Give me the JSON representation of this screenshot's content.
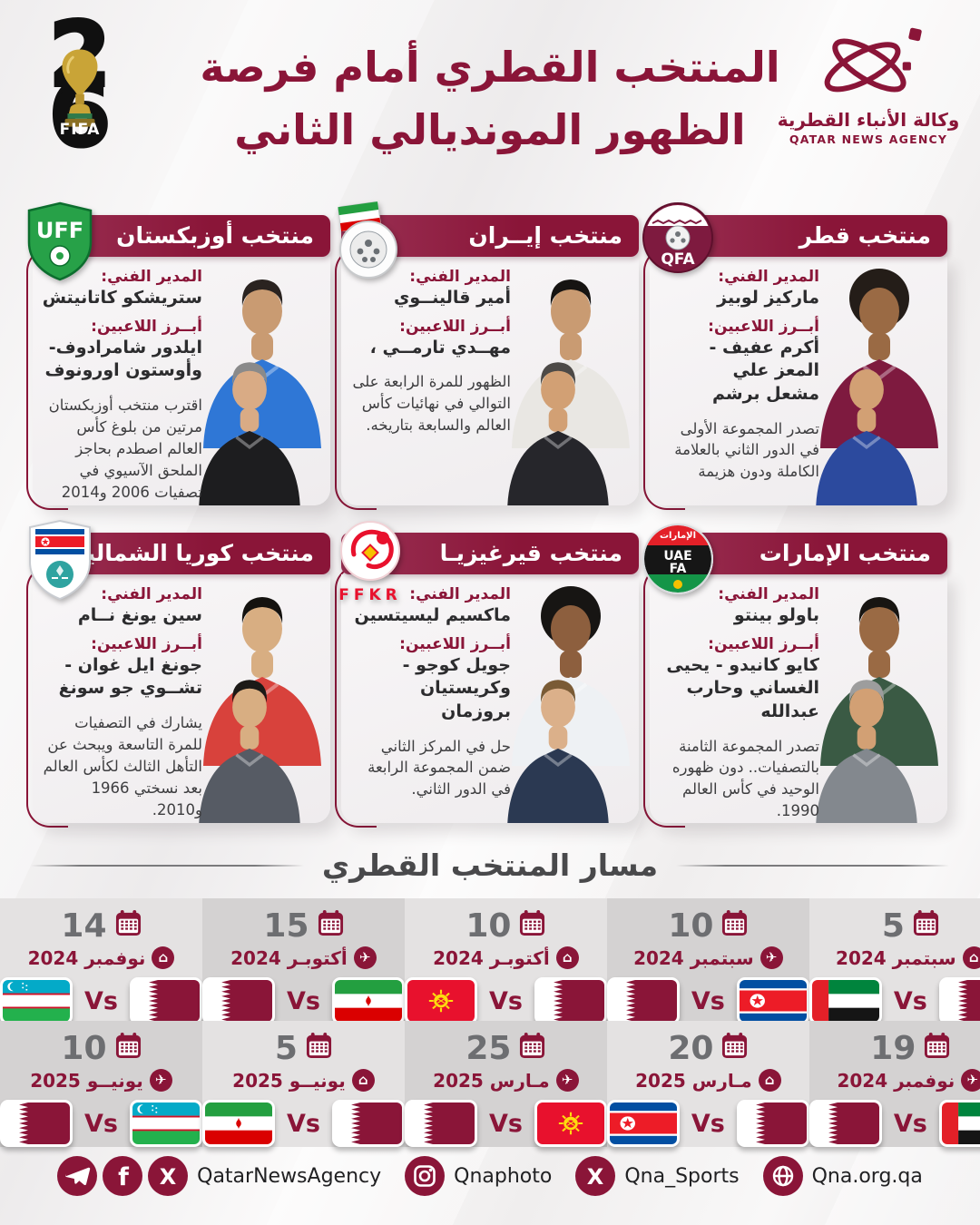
{
  "colors": {
    "accent_maroon": "#8a1538",
    "qfa_maroon": "#7e1a3f",
    "cell_light": "#e4e2e2",
    "cell_dark": "#d4d2d2",
    "day_gray": "#6d6e71",
    "section_gray": "#49494b"
  },
  "header": {
    "fifa_badge": {
      "digit_top": "2",
      "digit_bottom": "6",
      "label": "FIFA",
      "trophy_icon": "world-cup-trophy-icon"
    },
    "title_line1": "المنتخب القطري أمام فرصة",
    "title_line2": "الظهور المونديالي الثاني",
    "qna": {
      "logo_icon": "qna-swirl-icon",
      "name_ar": "وكالة الأنباء القطرية",
      "name_en": "QATAR NEWS AGENCY"
    }
  },
  "labels": {
    "coach": "المدير الفني:",
    "players": "أبــرز اللاعبين:",
    "vs": "Vs"
  },
  "icons": {
    "home_glyph": "⌂",
    "away_glyph": "✈"
  },
  "teams": [
    {
      "id": "uzbekistan",
      "title": "منتخب أوزبكستان",
      "badge": "uff",
      "badge_letters": "UFF",
      "coach": "ستريشكو كاتانيتش",
      "players": "ايلدور شامرادوف-\nوأوستون اورونوف",
      "desc": "اقترب منتخب أوزبكستان مرتين من بلوغ كأس العالم اصطدم بحاجز الملحق الآسيوي في تصفيات 2006 و2014",
      "photo": {
        "player": {
          "skin": "#c99b72",
          "hair": "#2a2320",
          "top": "#2f77d6",
          "style": "cap"
        },
        "coach": {
          "skin": "#d9ab85",
          "hair": "#8a8a8a",
          "top": "#1d1d1f",
          "style": "cap"
        }
      }
    },
    {
      "id": "iran",
      "title": "منتخب إيــران",
      "badge": "irnfed",
      "badge_letters": "",
      "coach": "أمير قالينــوي",
      "players": "مهــدي تارمــي ،",
      "desc": "الظهور للمرة الرابعة على التوالي في نهائيات كأس العالم والسابعة بتاريخه.",
      "photo": {
        "player": {
          "skin": "#c99b72",
          "hair": "#161412",
          "top": "#e9e7e3",
          "style": "cap"
        },
        "coach": {
          "skin": "#d2a074",
          "hair": "#4d4a47",
          "top": "#26262b",
          "style": "cap"
        }
      }
    },
    {
      "id": "qatar",
      "title": "منتخب قطر",
      "badge": "qfa",
      "badge_letters": "QFA",
      "coach": "ماركيز لوبيز",
      "players": "أكرم عفيف - المعز علي\nمشعل برشم",
      "desc": "تصدر المجموعة الأولى في الدور الثاني بالعلامة الكاملة ودون هزيمة",
      "photo": {
        "player": {
          "skin": "#9a6a44",
          "hair": "#241d18",
          "top": "#7e1a3f",
          "style": "afro"
        },
        "coach": {
          "skin": "#d2a074",
          "hair": "#b9b9b9",
          "top": "#2c4a9e",
          "style": "bald"
        }
      }
    },
    {
      "id": "north-korea",
      "title": "منتخب كوريا الشمالية",
      "badge": "prkfed",
      "badge_letters": "",
      "coach": "سين يونغ نــام",
      "players": "جونغ ايل غوان -\nتشــوي جو سونغ",
      "desc": "يشارك في التصفيات للمرة التاسعة ويبحث عن التأهل الثالث لكأس العالم بعد نسختي 1966 و2010.",
      "photo": {
        "player": {
          "skin": "#d8ae82",
          "hair": "#14120f",
          "top": "#d8423c",
          "style": "cap"
        },
        "coach": {
          "skin": "#d8ae82",
          "hair": "#1c1a17",
          "top": "#565b64",
          "style": "cap"
        }
      }
    },
    {
      "id": "kyrgyzstan",
      "title": "منتخب قيرغيزيـا",
      "badge": "ffkr",
      "badge_letters": "FFKR",
      "coach": "ماكسيم ليسيتسين",
      "players": "جويل كوجو -\nوكريستيان بروزمان",
      "desc": "حل في المركز الثاني ضمن المجموعة الرابعة في الدور الثاني.",
      "photo": {
        "player": {
          "skin": "#8d5f3e",
          "hair": "#171513",
          "top": "#eef1f4",
          "style": "afro"
        },
        "coach": {
          "skin": "#dbb08a",
          "hair": "#7a5b35",
          "top": "#2b3952",
          "style": "cap"
        }
      }
    },
    {
      "id": "uae",
      "title": "منتخب الإمارات",
      "badge": "uaefa",
      "badge_letters": "UAE",
      "badge_letters2": "FA",
      "badge_caption": "الإمارات",
      "coach": "باولو بينتو",
      "players": "كايو كانيدو - يحيى\nالغساني وحارب عبدالله",
      "desc": "تصدر المجموعة الثامنة بالتصفيات.. دون ظهوره الوحيد في كأس العالم 1990.",
      "photo": {
        "player": {
          "skin": "#9a6a44",
          "hair": "#181512",
          "top": "#3a5a44",
          "style": "cap"
        },
        "coach": {
          "skin": "#d2a074",
          "hair": "#9d9d9d",
          "top": "#83888e",
          "style": "cap"
        }
      }
    }
  ],
  "path_section": {
    "title": "مسار المنتخب القطري"
  },
  "schedule": {
    "row1": [
      {
        "day": "14",
        "month": "نوفمبر 2024",
        "venue": "home",
        "flags": [
          "uzb",
          "qat"
        ]
      },
      {
        "day": "15",
        "month": "أكتوبـر 2024",
        "venue": "away",
        "flags": [
          "qat",
          "irn"
        ]
      },
      {
        "day": "10",
        "month": "أكتوبـر 2024",
        "venue": "home",
        "flags": [
          "kgz",
          "qat"
        ]
      },
      {
        "day": "10",
        "month": "سبتمبر 2024",
        "venue": "away",
        "flags": [
          "qat",
          "prk"
        ]
      },
      {
        "day": "5",
        "month": "سبتمبر 2024",
        "venue": "home",
        "flags": [
          "uae",
          "qat"
        ]
      }
    ],
    "row2": [
      {
        "day": "10",
        "month": "يونيــو 2025",
        "venue": "away",
        "flags": [
          "qat",
          "uzb"
        ]
      },
      {
        "day": "5",
        "month": "يونيــو 2025",
        "venue": "home",
        "flags": [
          "irn",
          "qat"
        ]
      },
      {
        "day": "25",
        "month": "مـارس 2025",
        "venue": "away",
        "flags": [
          "qat",
          "kgz"
        ]
      },
      {
        "day": "20",
        "month": "مـارس 2025",
        "venue": "home",
        "flags": [
          "prk",
          "qat"
        ]
      },
      {
        "day": "19",
        "month": "نوفمبر 2024",
        "venue": "away",
        "flags": [
          "qat",
          "uae"
        ]
      }
    ]
  },
  "footer": {
    "groups": [
      {
        "icons": [
          "telegram",
          "facebook",
          "x"
        ],
        "label": "QatarNewsAgency"
      },
      {
        "icons": [
          "instagram"
        ],
        "label": "Qnaphoto"
      },
      {
        "icons": [
          "x"
        ],
        "label": "Qna_Sports"
      },
      {
        "icons": [
          "globe"
        ],
        "label": "Qna.org.qa"
      }
    ]
  }
}
